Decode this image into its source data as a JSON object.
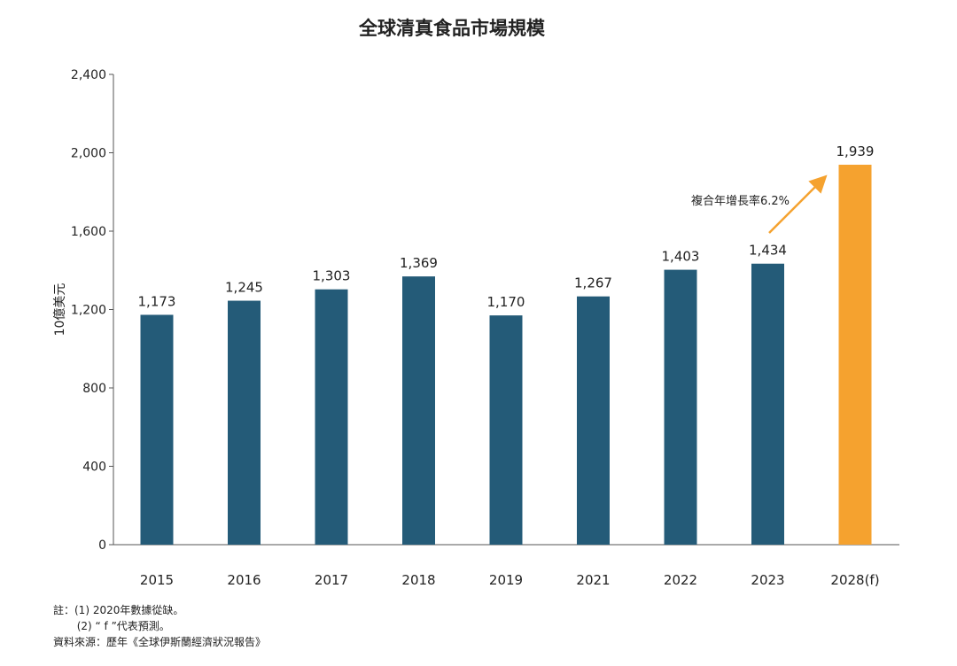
{
  "chart_data": {
    "type": "bar",
    "title": "全球清真食品市場規模",
    "ylabel": "10億美元",
    "xlabel": "",
    "ylim": [
      0,
      2400
    ],
    "yticks": [
      0,
      400,
      800,
      1200,
      1600,
      2000,
      2400
    ],
    "ytick_labels": [
      "0",
      "400",
      "800",
      "1,200",
      "1,600",
      "2,000",
      "2,400"
    ],
    "grid": false,
    "categories": [
      "2015",
      "2016",
      "2017",
      "2018",
      "2019",
      "2021",
      "2022",
      "2023",
      "2028(f)"
    ],
    "values": [
      1173,
      1245,
      1303,
      1369,
      1170,
      1267,
      1403,
      1434,
      1939
    ],
    "data_labels": [
      "1,173",
      "1,245",
      "1,303",
      "1,369",
      "1,170",
      "1,267",
      "1,403",
      "1,434",
      "1,939"
    ],
    "forecast": [
      false,
      false,
      false,
      false,
      false,
      false,
      false,
      false,
      true
    ],
    "annotation": "複合年增長率6.2%",
    "colors": {
      "actual": "#245B78",
      "forecast": "#F5A22F",
      "arrow": "#F5A22F"
    }
  },
  "notes": {
    "note1": "註：(1) 2020年數據從缺。",
    "note2": "       (2) “ f ”代表預測。",
    "source": "資料來源：歷年《全球伊斯蘭經濟狀況報告》"
  }
}
